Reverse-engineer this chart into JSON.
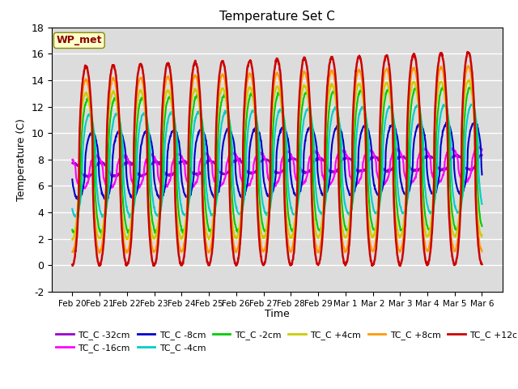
{
  "title": "Temperature Set C",
  "xlabel": "Time",
  "ylabel": "Temperature (C)",
  "ylim": [
    -2,
    18
  ],
  "yticks": [
    -2,
    0,
    2,
    4,
    6,
    8,
    10,
    12,
    14,
    16,
    18
  ],
  "annotation": "WP_met",
  "bg_color": "#dcdcdc",
  "series_order": [
    "TC_C -32cm",
    "TC_C -16cm",
    "TC_C -8cm",
    "TC_C -4cm",
    "TC_C -2cm",
    "TC_C +4cm",
    "TC_C +8cm",
    "TC_C +12cm"
  ],
  "colors": {
    "TC_C -32cm": "#9900cc",
    "TC_C -16cm": "#ff00ff",
    "TC_C -8cm": "#0000cc",
    "TC_C -4cm": "#00cccc",
    "TC_C -2cm": "#00cc00",
    "TC_C +4cm": "#cccc00",
    "TC_C +8cm": "#ff9900",
    "TC_C +12cm": "#cc0000"
  },
  "lws": {
    "TC_C -32cm": 1.5,
    "TC_C -16cm": 1.5,
    "TC_C -8cm": 1.5,
    "TC_C -4cm": 1.5,
    "TC_C -2cm": 1.5,
    "TC_C +4cm": 1.5,
    "TC_C +8cm": 1.5,
    "TC_C +12cm": 1.8
  },
  "xtick_labels": [
    "Feb 20",
    "Feb 21",
    "Feb 22",
    "Feb 23",
    "Feb 24",
    "Feb 25",
    "Feb 26",
    "Feb 27",
    "Feb 28",
    "Feb 29",
    "Mar 1",
    "Mar 2",
    "Mar 3",
    "Mar 4",
    "Mar 5",
    "Mar 6"
  ],
  "base_temps": {
    "TC_C -32cm": 7.2,
    "TC_C -16cm": 7.0,
    "TC_C -8cm": 7.5,
    "TC_C -4cm": 7.5,
    "TC_C -2cm": 7.5,
    "TC_C +4cm": 7.5,
    "TC_C +8cm": 7.5,
    "TC_C +12cm": 7.5
  },
  "amplitudes": {
    "TC_C -32cm": 0.5,
    "TC_C -16cm": 1.2,
    "TC_C -8cm": 2.5,
    "TC_C -4cm": 3.8,
    "TC_C -2cm": 5.0,
    "TC_C +4cm": 5.5,
    "TC_C +8cm": 6.5,
    "TC_C +12cm": 7.5
  },
  "phase_lags": {
    "TC_C -32cm": 0.55,
    "TC_C -16cm": 0.38,
    "TC_C -8cm": 0.22,
    "TC_C -4cm": 0.12,
    "TC_C -2cm": 0.06,
    "TC_C +4cm": 0.0,
    "TC_C +8cm": 0.0,
    "TC_C +12cm": 0.0
  },
  "n_points": 1500
}
